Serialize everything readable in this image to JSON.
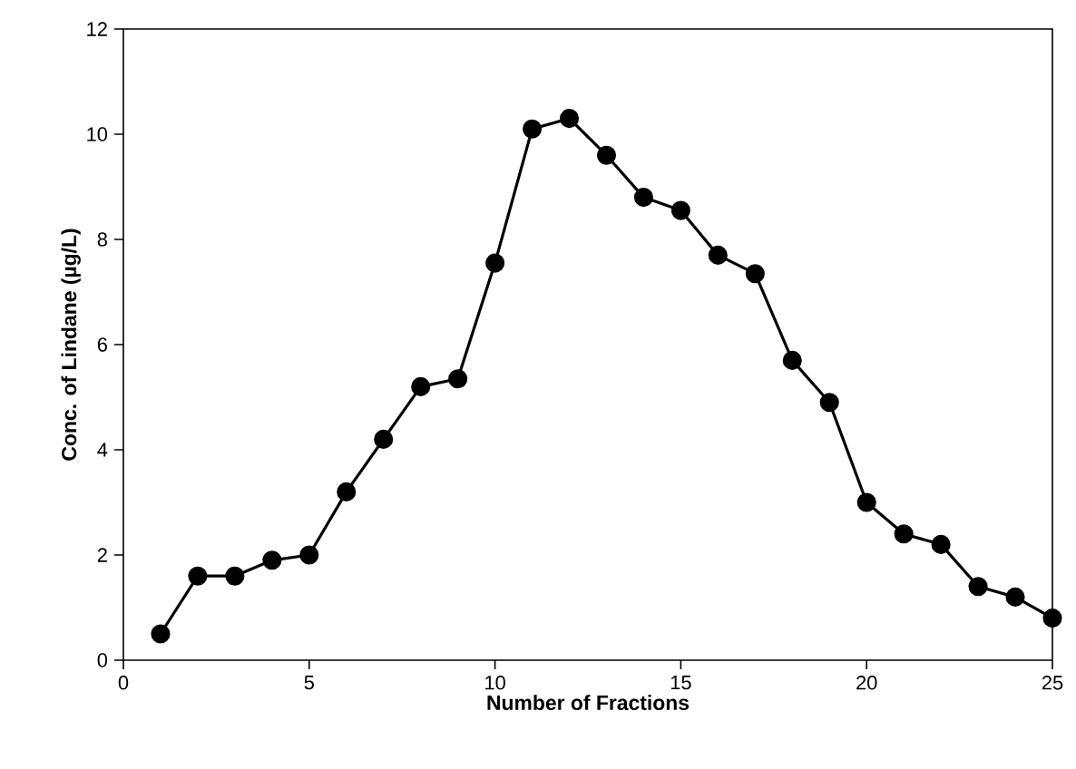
{
  "chart_data": {
    "type": "line",
    "xlabel": "Number of Fractions",
    "ylabel": "Conc. of Lindane (µg/L)",
    "x": [
      1,
      2,
      3,
      4,
      5,
      6,
      7,
      8,
      9,
      10,
      11,
      12,
      13,
      14,
      15,
      16,
      17,
      18,
      19,
      20,
      21,
      22,
      23,
      24,
      25
    ],
    "series": [
      {
        "color": "#000000",
        "values": [
          0.5,
          1.6,
          1.6,
          1.9,
          2.0,
          3.2,
          4.2,
          5.2,
          5.35,
          7.55,
          10.1,
          10.3,
          9.6,
          8.8,
          8.55,
          7.7,
          7.35,
          5.7,
          4.9,
          3.0,
          2.4,
          2.2,
          1.4,
          1.2,
          0.8
        ]
      }
    ],
    "xlim": [
      0,
      25
    ],
    "xticks": [
      0,
      5,
      10,
      15,
      20,
      25
    ],
    "ylim": [
      0,
      12
    ],
    "yticks": [
      0,
      2,
      4,
      6,
      8,
      10,
      12
    ],
    "grid": false,
    "legend": false,
    "marker": "circle",
    "line_style": "solid"
  }
}
